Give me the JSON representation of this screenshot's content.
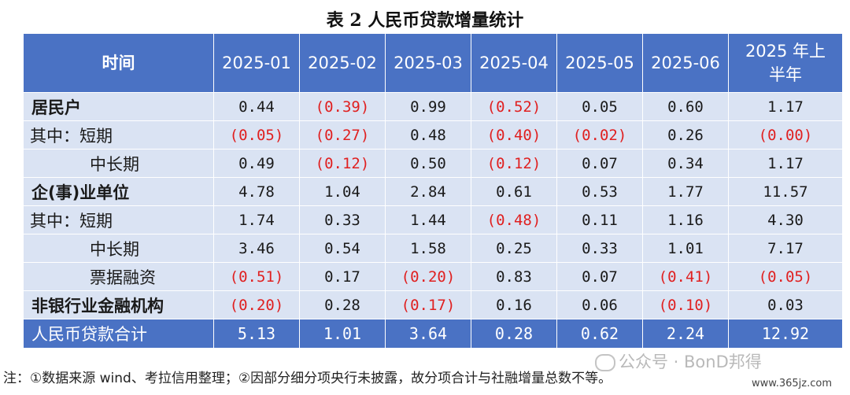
{
  "title": "表 2 人民币贷款增量统计",
  "table": {
    "headers": [
      "时间",
      "2025-01",
      "2025-02",
      "2025-03",
      "2025-04",
      "2025-05",
      "2025-06",
      "2025 年上半年"
    ],
    "rows": [
      {
        "label": "居民户",
        "values": [
          "0.44",
          "(0.39)",
          "0.99",
          "(0.52)",
          "0.05",
          "0.60",
          "1.17"
        ]
      },
      {
        "label": "其中：短期",
        "values": [
          "(0.05)",
          "(0.27)",
          "0.48",
          "(0.40)",
          "(0.02)",
          "0.26",
          "(0.00)"
        ]
      },
      {
        "label": "中长期",
        "values": [
          "0.49",
          "(0.12)",
          "0.50",
          "(0.12)",
          "0.07",
          "0.34",
          "1.17"
        ]
      },
      {
        "label": "企(事)业单位",
        "values": [
          "4.78",
          "1.04",
          "2.84",
          "0.61",
          "0.53",
          "1.77",
          "11.57"
        ]
      },
      {
        "label": "其中：短期",
        "values": [
          "1.74",
          "0.33",
          "1.44",
          "(0.48)",
          "0.11",
          "1.16",
          "4.30"
        ]
      },
      {
        "label": "中长期",
        "values": [
          "3.46",
          "0.54",
          "1.58",
          "0.25",
          "0.33",
          "1.01",
          "7.17"
        ]
      },
      {
        "label": "票据融资",
        "values": [
          "(0.51)",
          "0.17",
          "(0.20)",
          "0.83",
          "0.07",
          "(0.41)",
          "(0.05)"
        ]
      },
      {
        "label": "非银行业金融机构",
        "values": [
          "(0.20)",
          "0.28",
          "(0.17)",
          "0.16",
          "0.06",
          "(0.10)",
          "0.03"
        ]
      }
    ],
    "total": {
      "label": "人民币贷款合计",
      "values": [
        "5.13",
        "1.01",
        "3.64",
        "0.28",
        "0.62",
        "2.24",
        "12.92"
      ]
    }
  },
  "note": "注：①数据来源 wind、考拉信用整理；②因部分细分项央行未披露，故分项合计与社融增量总数不等。",
  "watermark": "公众号 · BonD邦得",
  "site": "www.365jz.com",
  "colors": {
    "header_bg": "#4a72c4",
    "row_bg": "#dae3f3",
    "negative": "#e02020"
  }
}
